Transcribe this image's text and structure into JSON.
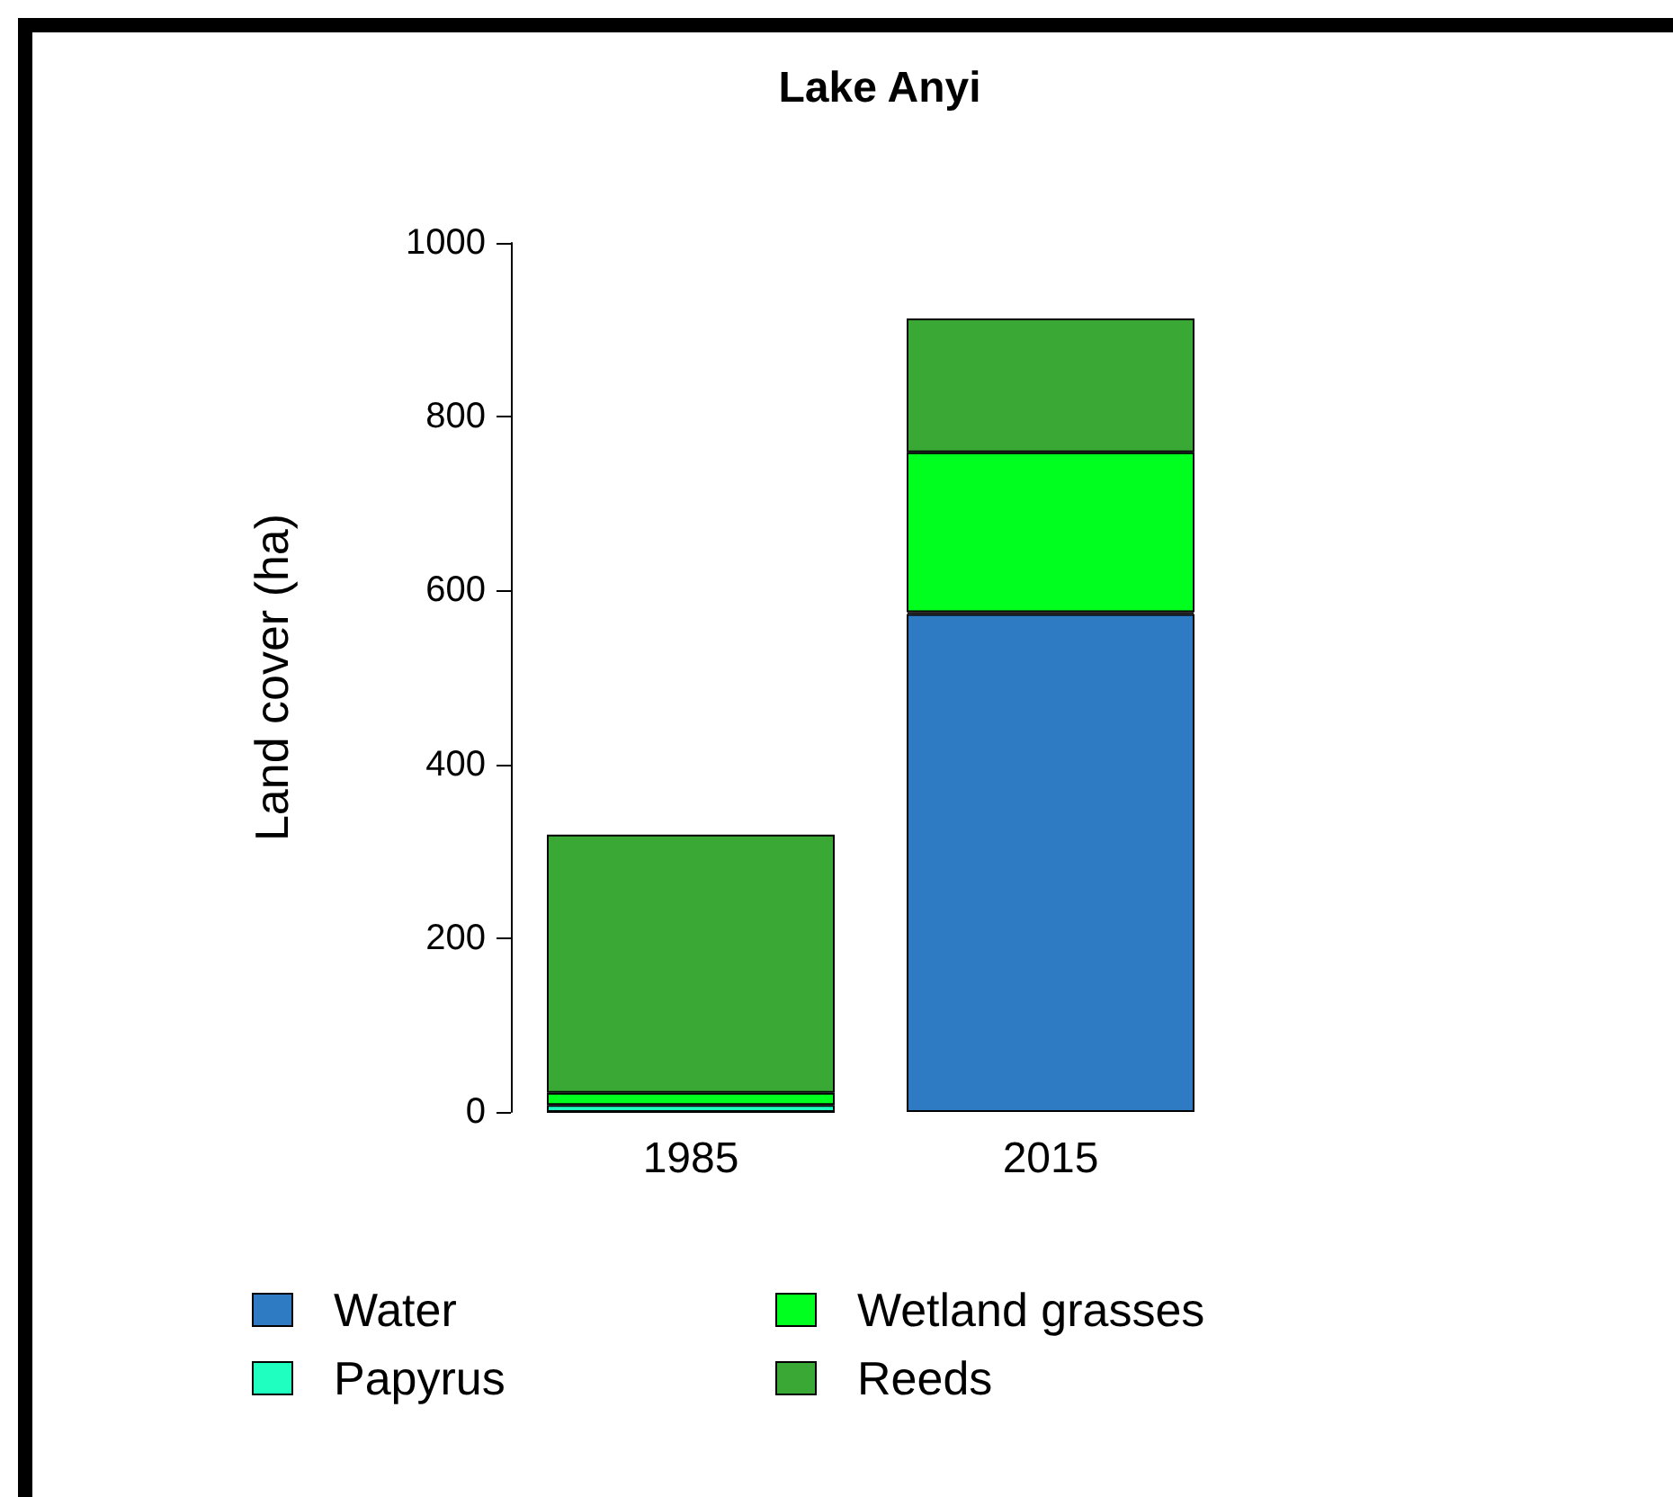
{
  "chart_data": {
    "type": "bar",
    "title": "Lake Anyi",
    "ylabel": "Land cover (ha)",
    "categories": [
      "1985",
      "2015"
    ],
    "stacked": true,
    "series": [
      {
        "name": "Water",
        "color": "#2e7bc4",
        "values": [
          0,
          573
        ]
      },
      {
        "name": "Papyrus",
        "color": "#1effc0",
        "values": [
          8,
          2
        ]
      },
      {
        "name": "Wetland grasses",
        "color": "#00ff1f",
        "values": [
          14,
          184
        ]
      },
      {
        "name": "Reeds",
        "color": "#3aa835",
        "values": [
          297,
          154
        ]
      }
    ],
    "ylim": [
      0,
      1000
    ],
    "yticks": [
      0,
      200,
      400,
      600,
      800,
      1000
    ],
    "grid": false,
    "legend": "bottom"
  }
}
